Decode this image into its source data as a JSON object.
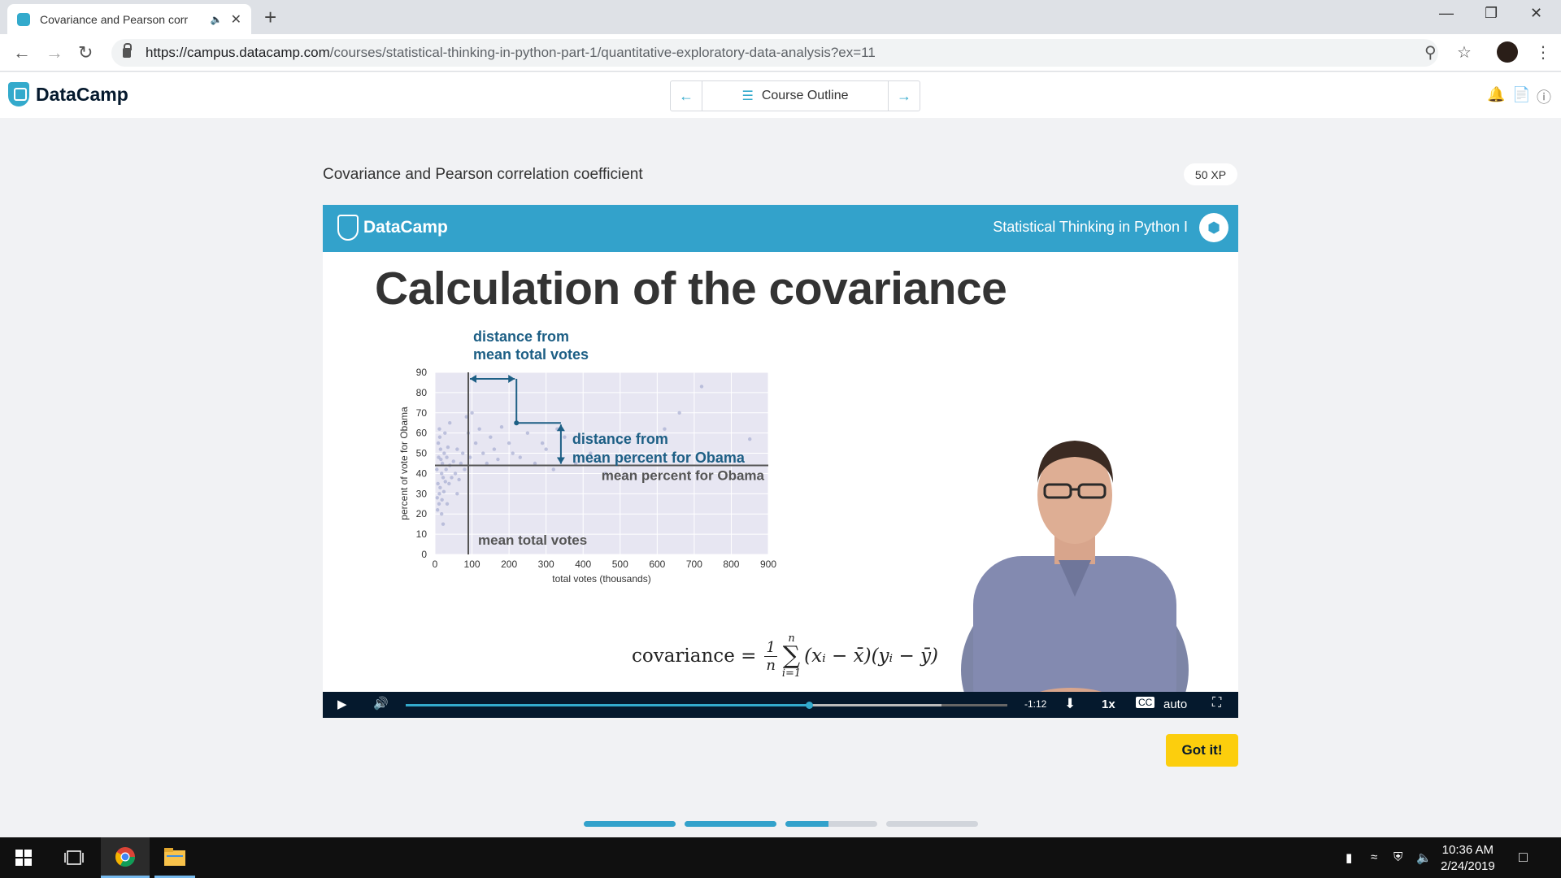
{
  "browser": {
    "tab_title": "Covariance and Pearson corr",
    "url_host": "https://campus.datacamp.com",
    "url_path": "/courses/statistical-thinking-in-python-part-1/quantitative-exploratory-data-analysis?ex=11"
  },
  "header": {
    "brand": "DataCamp",
    "course_outline_label": "Course Outline"
  },
  "lesson": {
    "title": "Covariance and Pearson correlation coefficient",
    "xp": "50 XP",
    "got_it_label": "Got it!"
  },
  "slide": {
    "brand": "DataCamp",
    "course_name": "Statistical Thinking in Python I",
    "heading": "Calculation of the covariance",
    "formula_label": "covariance =",
    "formula_num": "1",
    "formula_den": "n",
    "sum_top": "n",
    "sum_bottom": "i=1",
    "formula_terms": "(xᵢ − x̄)(yᵢ − ȳ)"
  },
  "chart_data": {
    "type": "scatter",
    "xlabel": "total votes (thousands)",
    "ylabel": "percent of vote for Obama",
    "xlim": [
      0,
      900
    ],
    "ylim": [
      0,
      90
    ],
    "x_ticks": [
      "0",
      "100",
      "200",
      "300",
      "400",
      "500",
      "600",
      "700",
      "800",
      "900"
    ],
    "y_ticks": [
      "0",
      "10",
      "20",
      "30",
      "40",
      "50",
      "60",
      "70",
      "80",
      "90"
    ],
    "mean_x": 90,
    "mean_y": 44,
    "highlight_point": {
      "x": 220,
      "y": 65
    },
    "annotations": {
      "dist_x": [
        "distance from",
        "mean total votes"
      ],
      "dist_y": [
        "distance from",
        "mean percent for Obama"
      ],
      "mean_y_label": "mean percent for Obama",
      "mean_x_label": "mean total votes"
    },
    "points": [
      [
        5,
        42
      ],
      [
        8,
        35
      ],
      [
        10,
        48
      ],
      [
        12,
        30
      ],
      [
        15,
        52
      ],
      [
        6,
        28
      ],
      [
        18,
        40
      ],
      [
        20,
        45
      ],
      [
        22,
        38
      ],
      [
        9,
        55
      ],
      [
        14,
        33
      ],
      [
        25,
        50
      ],
      [
        28,
        36
      ],
      [
        30,
        42
      ],
      [
        11,
        25
      ],
      [
        16,
        47
      ],
      [
        24,
        31
      ],
      [
        35,
        53
      ],
      [
        40,
        44
      ],
      [
        45,
        38
      ],
      [
        7,
        22
      ],
      [
        13,
        58
      ],
      [
        19,
        27
      ],
      [
        32,
        48
      ],
      [
        38,
        35
      ],
      [
        50,
        46
      ],
      [
        55,
        40
      ],
      [
        60,
        52
      ],
      [
        65,
        37
      ],
      [
        70,
        45
      ],
      [
        75,
        50
      ],
      [
        80,
        42
      ],
      [
        90,
        60
      ],
      [
        95,
        48
      ],
      [
        110,
        55
      ],
      [
        120,
        62
      ],
      [
        130,
        50
      ],
      [
        140,
        45
      ],
      [
        150,
        58
      ],
      [
        160,
        52
      ],
      [
        170,
        47
      ],
      [
        180,
        63
      ],
      [
        200,
        55
      ],
      [
        210,
        50
      ],
      [
        230,
        48
      ],
      [
        250,
        60
      ],
      [
        270,
        45
      ],
      [
        290,
        55
      ],
      [
        300,
        52
      ],
      [
        320,
        42
      ],
      [
        330,
        62
      ],
      [
        350,
        58
      ],
      [
        380,
        45
      ],
      [
        420,
        50
      ],
      [
        460,
        40
      ],
      [
        500,
        55
      ],
      [
        550,
        48
      ],
      [
        620,
        62
      ],
      [
        660,
        70
      ],
      [
        720,
        83
      ],
      [
        850,
        57
      ],
      [
        40,
        65
      ],
      [
        60,
        30
      ],
      [
        85,
        68
      ],
      [
        100,
        70
      ],
      [
        18,
        20
      ],
      [
        22,
        15
      ],
      [
        27,
        60
      ],
      [
        12,
        62
      ],
      [
        33,
        25
      ]
    ]
  },
  "player": {
    "time_remaining": "-1:12",
    "speed": "1x",
    "quality": "auto",
    "played_fraction": 0.67,
    "buffered_fraction": 0.89
  },
  "exercise_progress": [
    1.0,
    1.0,
    0.47,
    0.0
  ],
  "taskbar": {
    "time": "10:36 AM",
    "date": "2/24/2019"
  },
  "colors": {
    "brand_blue": "#33a2cb",
    "navy": "#05192d",
    "yellow": "#fcce0d",
    "annotation_blue": "#1d5f85"
  }
}
